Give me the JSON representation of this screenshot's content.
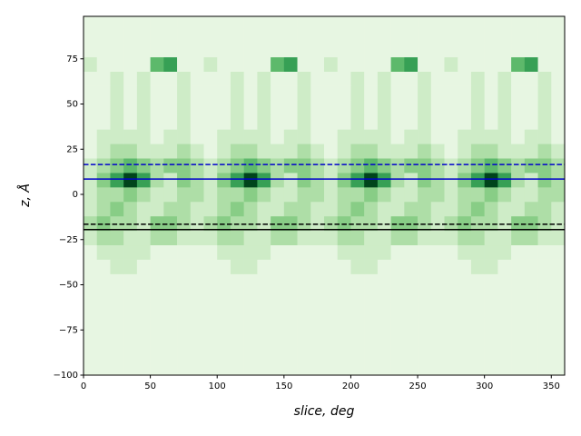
{
  "chart_data": {
    "type": "heatmap",
    "xlabel": "slice, deg",
    "ylabel": "z, Å",
    "xlim": [
      0,
      360
    ],
    "ylim": [
      -100,
      98.5
    ],
    "xticks": [
      0,
      50,
      100,
      150,
      200,
      250,
      300,
      350
    ],
    "yticks": [
      {
        "value": -100,
        "label": "−100"
      },
      {
        "value": -75,
        "label": "−75"
      },
      {
        "value": -50,
        "label": "−50"
      },
      {
        "value": -25,
        "label": "−25"
      },
      0,
      25,
      50,
      75
    ],
    "xbins": [
      0,
      10,
      20,
      30,
      40,
      50,
      60,
      70,
      80,
      90,
      100,
      110,
      120,
      130,
      140,
      150,
      160,
      170,
      180,
      190,
      200,
      210,
      220,
      230,
      240,
      250,
      260,
      270,
      280,
      290,
      300,
      310,
      320,
      330,
      340,
      350,
      360
    ],
    "ybins": [
      -100,
      -92,
      -84,
      -76,
      -68,
      -60,
      -52,
      -44,
      -36,
      -28,
      -20,
      -12,
      -4,
      4,
      12,
      20,
      28,
      36,
      44,
      52,
      60,
      68,
      76,
      84,
      92,
      100
    ],
    "colors": [
      "#f7fcf5",
      "#e5f5e0",
      "#c7e9c0",
      "#a1d99b",
      "#74c476",
      "#41ab5d",
      "#238b45",
      "#006d2c",
      "#00441b"
    ],
    "vlim": [
      0,
      9
    ],
    "values": [
      [
        1,
        1,
        1,
        1,
        1,
        1,
        1,
        1,
        1,
        1,
        1,
        1,
        1,
        1,
        1,
        1,
        1,
        1,
        1,
        1,
        1,
        1,
        1,
        1,
        1,
        1,
        1,
        1,
        1,
        1,
        1,
        1,
        1,
        1,
        1,
        1
      ],
      [
        1,
        1,
        1,
        1,
        1,
        1,
        1,
        1,
        1,
        1,
        1,
        1,
        1,
        1,
        1,
        1,
        1,
        1,
        1,
        1,
        1,
        1,
        1,
        1,
        1,
        1,
        1,
        1,
        1,
        1,
        1,
        1,
        1,
        1,
        1,
        1
      ],
      [
        1,
        1,
        1,
        1,
        1,
        1,
        1,
        1,
        1,
        1,
        1,
        1,
        1,
        1,
        1,
        1,
        1,
        1,
        1,
        1,
        1,
        1,
        1,
        1,
        1,
        1,
        1,
        1,
        1,
        1,
        1,
        1,
        1,
        1,
        1,
        1
      ],
      [
        1,
        1,
        1,
        1,
        1,
        1,
        1,
        1,
        1,
        1,
        1,
        1,
        1,
        1,
        1,
        1,
        1,
        1,
        1,
        1,
        1,
        1,
        1,
        1,
        1,
        1,
        1,
        1,
        1,
        1,
        1,
        1,
        1,
        1,
        1,
        1
      ],
      [
        1,
        1,
        1,
        1,
        1,
        1,
        1,
        1,
        1,
        1,
        1,
        1,
        1,
        1,
        1,
        1,
        1,
        1,
        1,
        1,
        1,
        1,
        1,
        1,
        1,
        1,
        1,
        1,
        1,
        1,
        1,
        1,
        1,
        1,
        1,
        1
      ],
      [
        1,
        1,
        1,
        1,
        1,
        1,
        1,
        1,
        1,
        1,
        1,
        1,
        1,
        1,
        1,
        1,
        1,
        1,
        1,
        1,
        1,
        1,
        1,
        1,
        1,
        1,
        1,
        1,
        1,
        1,
        1,
        1,
        1,
        1,
        1,
        1
      ],
      [
        1,
        1,
        1,
        1,
        1,
        1,
        1,
        1,
        1,
        1,
        1,
        1,
        1,
        1,
        1,
        1,
        1,
        1,
        1,
        1,
        1,
        1,
        1,
        1,
        1,
        1,
        1,
        1,
        1,
        1,
        1,
        1,
        1,
        1,
        1,
        1
      ],
      [
        1,
        1,
        2,
        2,
        1,
        1,
        1,
        1,
        1,
        1,
        1,
        2,
        2,
        1,
        1,
        1,
        1,
        1,
        1,
        1,
        2,
        2,
        1,
        1,
        1,
        1,
        1,
        1,
        1,
        2,
        2,
        1,
        1,
        1,
        1,
        1
      ],
      [
        1,
        2,
        2,
        2,
        2,
        1,
        1,
        1,
        1,
        1,
        2,
        2,
        2,
        2,
        1,
        1,
        1,
        1,
        1,
        2,
        2,
        2,
        2,
        1,
        1,
        1,
        1,
        1,
        2,
        2,
        2,
        2,
        1,
        1,
        1,
        1
      ],
      [
        2,
        3,
        3,
        2,
        2,
        3,
        3,
        2,
        2,
        2,
        3,
        3,
        2,
        2,
        3,
        3,
        2,
        2,
        2,
        3,
        3,
        2,
        2,
        3,
        3,
        2,
        2,
        2,
        3,
        3,
        2,
        2,
        3,
        3,
        2,
        2
      ],
      [
        3,
        4,
        3,
        3,
        2,
        4,
        4,
        3,
        2,
        3,
        4,
        3,
        3,
        2,
        4,
        4,
        3,
        2,
        3,
        4,
        3,
        3,
        2,
        4,
        4,
        3,
        2,
        3,
        4,
        3,
        3,
        2,
        4,
        4,
        3,
        2
      ],
      [
        2,
        3,
        4,
        3,
        2,
        2,
        3,
        3,
        2,
        2,
        3,
        4,
        3,
        2,
        2,
        3,
        3,
        2,
        2,
        3,
        4,
        3,
        2,
        2,
        3,
        3,
        2,
        2,
        3,
        4,
        3,
        2,
        2,
        3,
        3,
        2
      ],
      [
        2,
        3,
        3,
        4,
        3,
        2,
        2,
        3,
        3,
        2,
        3,
        3,
        4,
        3,
        2,
        2,
        3,
        3,
        2,
        3,
        3,
        4,
        3,
        2,
        2,
        3,
        3,
        2,
        3,
        3,
        4,
        3,
        2,
        2,
        3,
        3
      ],
      [
        2,
        4,
        6,
        9,
        6,
        3,
        2,
        4,
        3,
        2,
        4,
        6,
        9,
        6,
        3,
        2,
        4,
        3,
        2,
        4,
        6,
        9,
        6,
        3,
        2,
        4,
        3,
        2,
        4,
        6,
        9,
        6,
        3,
        2,
        4,
        3
      ],
      [
        2,
        3,
        4,
        5,
        4,
        3,
        4,
        4,
        3,
        2,
        3,
        4,
        5,
        4,
        3,
        4,
        4,
        3,
        2,
        3,
        4,
        5,
        4,
        3,
        4,
        4,
        3,
        2,
        3,
        4,
        5,
        4,
        3,
        4,
        4,
        3
      ],
      [
        1,
        2,
        3,
        3,
        2,
        2,
        2,
        3,
        2,
        1,
        2,
        3,
        3,
        2,
        2,
        2,
        3,
        2,
        1,
        2,
        3,
        3,
        2,
        2,
        2,
        3,
        2,
        1,
        2,
        3,
        3,
        2,
        2,
        2,
        3,
        2
      ],
      [
        1,
        2,
        2,
        2,
        2,
        1,
        2,
        2,
        1,
        1,
        2,
        2,
        2,
        2,
        1,
        2,
        2,
        1,
        1,
        2,
        2,
        2,
        2,
        1,
        2,
        2,
        1,
        1,
        2,
        2,
        2,
        2,
        1,
        2,
        2,
        1
      ],
      [
        1,
        1,
        2,
        1,
        2,
        1,
        1,
        2,
        1,
        1,
        1,
        2,
        1,
        2,
        1,
        1,
        2,
        1,
        1,
        1,
        2,
        1,
        2,
        1,
        1,
        2,
        1,
        1,
        1,
        2,
        1,
        2,
        1,
        1,
        2,
        1
      ],
      [
        1,
        1,
        2,
        1,
        2,
        1,
        1,
        2,
        1,
        1,
        1,
        2,
        1,
        2,
        1,
        1,
        2,
        1,
        1,
        1,
        2,
        1,
        2,
        1,
        1,
        2,
        1,
        1,
        1,
        2,
        1,
        2,
        1,
        1,
        2,
        1
      ],
      [
        1,
        1,
        2,
        1,
        2,
        1,
        1,
        2,
        1,
        1,
        1,
        2,
        1,
        2,
        1,
        1,
        2,
        1,
        1,
        1,
        2,
        1,
        2,
        1,
        1,
        2,
        1,
        1,
        1,
        2,
        1,
        2,
        1,
        1,
        2,
        1
      ],
      [
        1,
        1,
        2,
        1,
        2,
        1,
        1,
        2,
        1,
        1,
        1,
        2,
        1,
        2,
        1,
        1,
        2,
        1,
        1,
        1,
        2,
        1,
        2,
        1,
        1,
        2,
        1,
        1,
        1,
        2,
        1,
        2,
        1,
        1,
        2,
        1
      ],
      [
        2,
        1,
        1,
        1,
        1,
        5,
        6,
        1,
        1,
        2,
        1,
        1,
        1,
        1,
        5,
        6,
        1,
        1,
        2,
        1,
        1,
        1,
        1,
        5,
        6,
        1,
        1,
        2,
        1,
        1,
        1,
        1,
        5,
        6,
        1,
        1
      ],
      [
        1,
        1,
        1,
        1,
        1,
        1,
        1,
        1,
        1,
        1,
        1,
        1,
        1,
        1,
        1,
        1,
        1,
        1,
        1,
        1,
        1,
        1,
        1,
        1,
        1,
        1,
        1,
        1,
        1,
        1,
        1,
        1,
        1,
        1,
        1,
        1
      ],
      [
        1,
        1,
        1,
        1,
        1,
        1,
        1,
        1,
        1,
        1,
        1,
        1,
        1,
        1,
        1,
        1,
        1,
        1,
        1,
        1,
        1,
        1,
        1,
        1,
        1,
        1,
        1,
        1,
        1,
        1,
        1,
        1,
        1,
        1,
        1,
        1
      ],
      [
        1,
        1,
        1,
        1,
        1,
        1,
        1,
        1,
        1,
        1,
        1,
        1,
        1,
        1,
        1,
        1,
        1,
        1,
        1,
        1,
        1,
        1,
        1,
        1,
        1,
        1,
        1,
        1,
        1,
        1,
        1,
        1,
        1,
        1,
        1,
        1
      ]
    ],
    "hlines": [
      {
        "value": 16.5,
        "color": "#0000cc",
        "style": "dashed"
      },
      {
        "value": 8.5,
        "color": "#0000cc",
        "style": "solid"
      },
      {
        "value": -16.5,
        "color": "#000000",
        "style": "dashed"
      },
      {
        "value": -19.5,
        "color": "#000000",
        "style": "solid"
      }
    ]
  }
}
